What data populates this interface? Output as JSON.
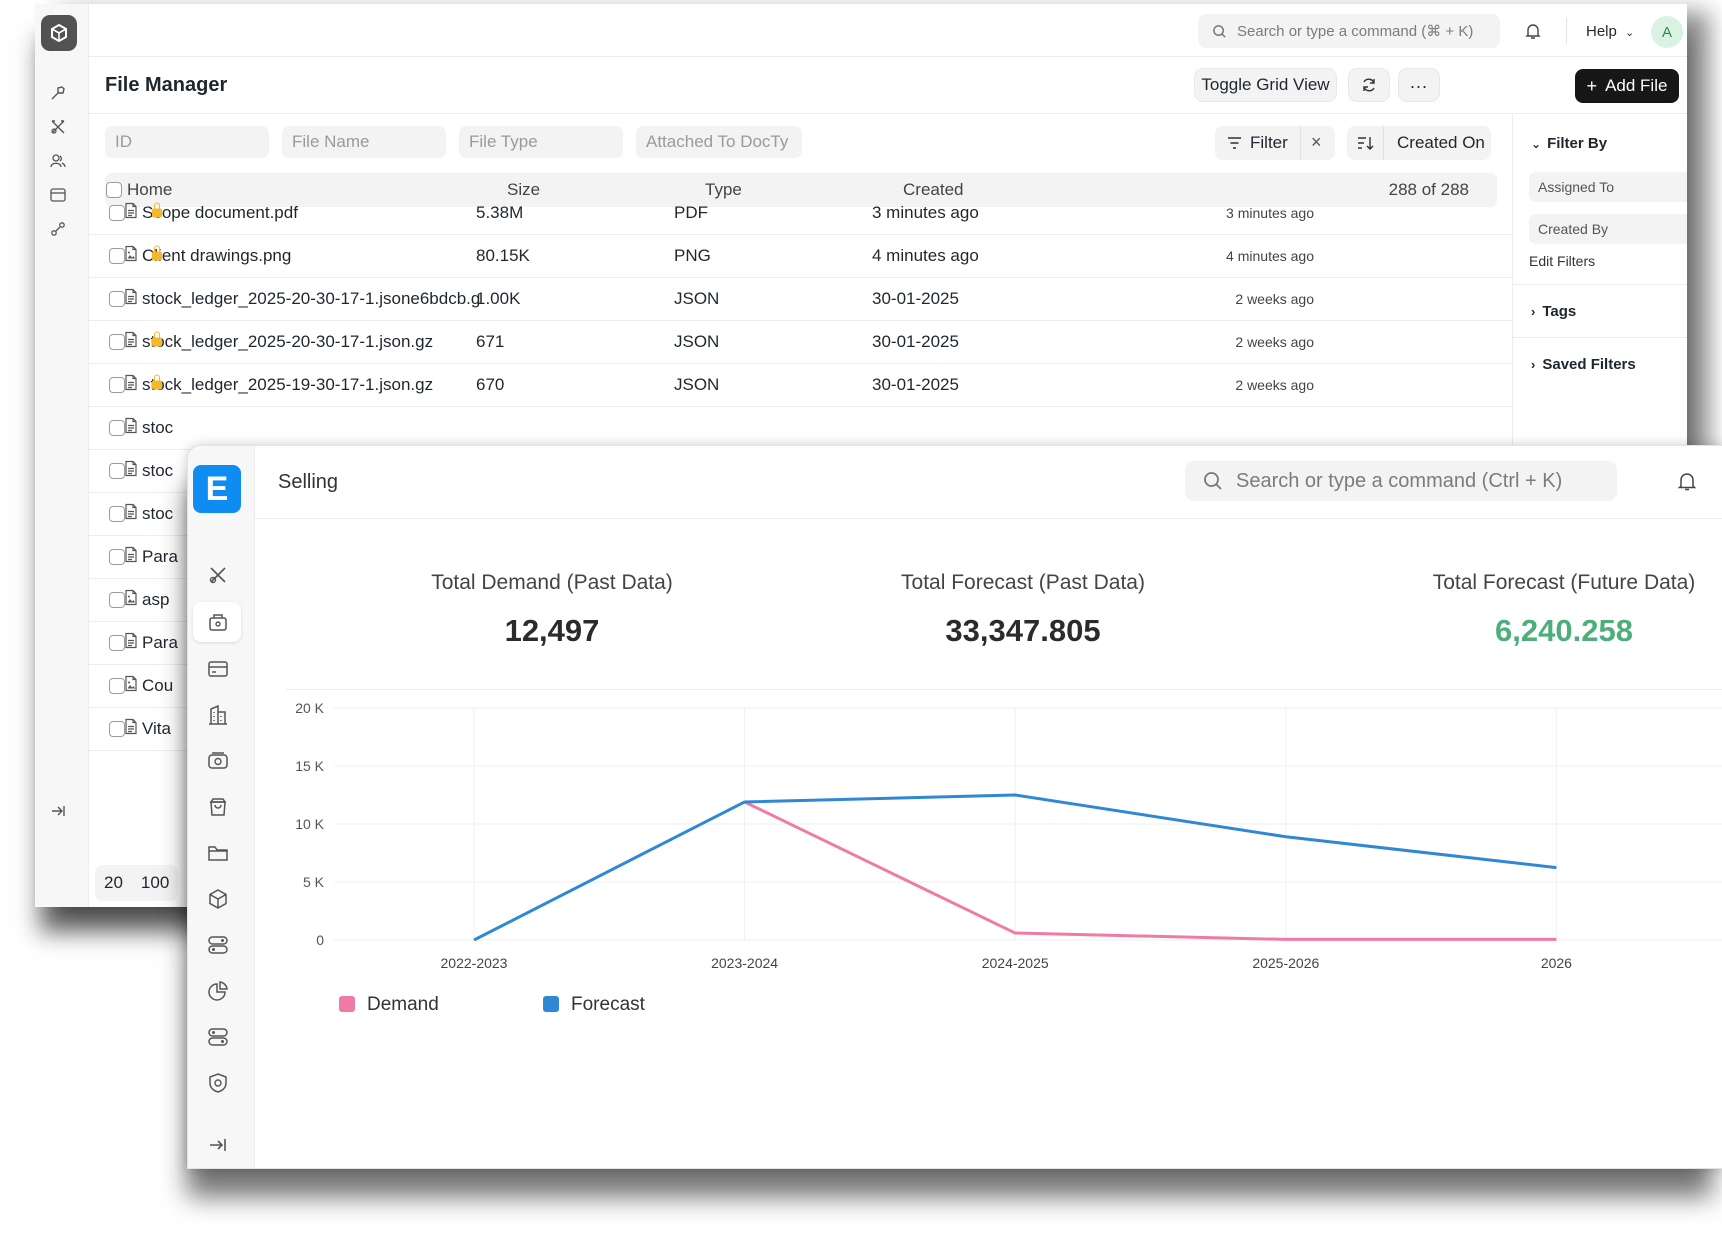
{
  "file_manager": {
    "top": {
      "search_placeholder": "Search or type a command (⌘ + K)",
      "help_label": "Help",
      "avatar_letter": "A"
    },
    "page_title": "File Manager",
    "actions": {
      "toggle_grid": "Toggle Grid View",
      "add_file": "Add File"
    },
    "filters": {
      "id": "ID",
      "file_name": "File Name",
      "file_type": "File Type",
      "attached_to": "Attached To DocTy",
      "filter_label": "Filter",
      "sort_label": "Created On"
    },
    "table": {
      "headers": [
        "Home",
        "Size",
        "Type",
        "Created"
      ],
      "count": "288 of 288",
      "rows": [
        {
          "name": "Scope document.pdf",
          "size": "5.38M",
          "type": "PDF",
          "created": "3 minutes ago",
          "modified": "3 minutes ago",
          "locked": true,
          "icon": "file-icon"
        },
        {
          "name": "Client drawings.png",
          "size": "80.15K",
          "type": "PNG",
          "created": "4 minutes ago",
          "modified": "4 minutes ago",
          "locked": true,
          "icon": "image-icon"
        },
        {
          "name": "stock_ledger_2025-20-30-17-1.jsone6bdcb.g",
          "size": "1.00K",
          "type": "JSON",
          "created": "30-01-2025",
          "modified": "2 weeks ago",
          "locked": false,
          "icon": "file-icon"
        },
        {
          "name": "stock_ledger_2025-20-30-17-1.json.gz",
          "size": "671",
          "type": "JSON",
          "created": "30-01-2025",
          "modified": "2 weeks ago",
          "locked": true,
          "icon": "file-icon"
        },
        {
          "name": "stock_ledger_2025-19-30-17-1.json.gz",
          "size": "670",
          "type": "JSON",
          "created": "30-01-2025",
          "modified": "2 weeks ago",
          "locked": true,
          "icon": "file-icon"
        },
        {
          "name": "stoc",
          "icon": "file-icon"
        },
        {
          "name": "stoc",
          "icon": "file-icon"
        },
        {
          "name": "stoc",
          "icon": "file-icon"
        },
        {
          "name": "Para",
          "icon": "file-icon"
        },
        {
          "name": "asp",
          "icon": "image-icon"
        },
        {
          "name": "Para",
          "icon": "file-icon"
        },
        {
          "name": "Cou",
          "icon": "image-icon"
        },
        {
          "name": "Vita",
          "icon": "file-icon"
        }
      ]
    },
    "sidebar": {
      "filter_by": "Filter By",
      "assigned_to": "Assigned To",
      "created_by": "Created By",
      "edit_filters": "Edit Filters",
      "tags": "Tags",
      "saved_filters": "Saved Filters"
    },
    "pager": [
      "20",
      "100"
    ]
  },
  "selling": {
    "logo_letter": "E",
    "title": "Selling",
    "search_placeholder": "Search or type a command (Ctrl + K)",
    "cards": [
      {
        "label": "Total Demand (Past Data)",
        "value": "12,497",
        "color": "#2b2b2b"
      },
      {
        "label": "Total Forecast (Past Data)",
        "value": "33,347.805",
        "color": "#2b2b2b"
      },
      {
        "label": "Total Forecast (Future Data)",
        "value": "6,240.258",
        "color": "#4dae7a"
      }
    ]
  },
  "chart_data": {
    "type": "line",
    "categories": [
      "2022-2023",
      "2023-2024",
      "2024-2025",
      "2025-2026",
      "2026"
    ],
    "y_ticks": [
      "0",
      "5 K",
      "10 K",
      "15 K",
      "20 K"
    ],
    "ylim": [
      0,
      20000
    ],
    "grid": true,
    "legend_position": "bottom-left",
    "series": [
      {
        "name": "Demand",
        "color": "#f07aa6",
        "values": [
          null,
          11900,
          600,
          50,
          50
        ]
      },
      {
        "name": "Forecast",
        "color": "#2f88d4",
        "values": [
          0,
          11900,
          12500,
          8900,
          6240
        ]
      }
    ]
  }
}
